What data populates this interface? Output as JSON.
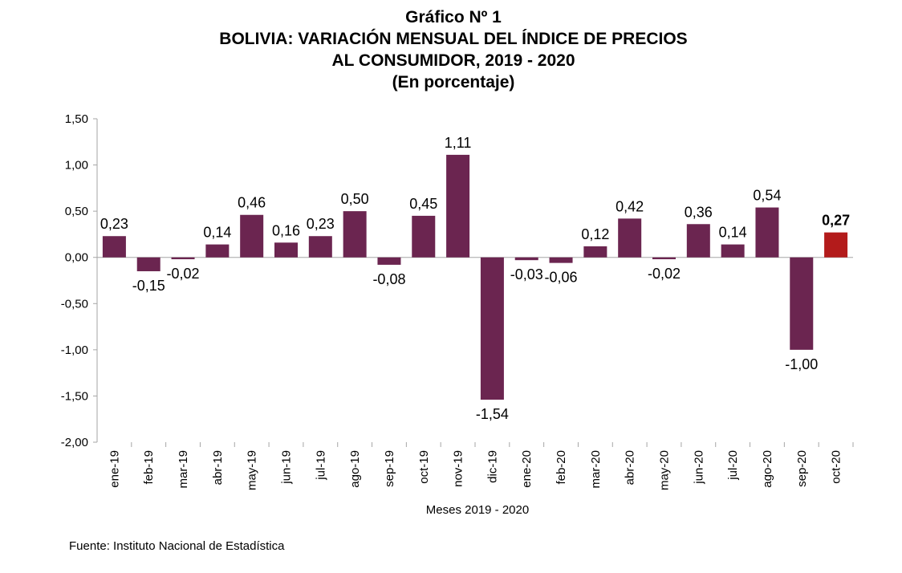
{
  "title_lines": [
    "Gráfico Nº 1",
    "BOLIVIA: VARIACIÓN MENSUAL DEL ÍNDICE DE PRECIOS",
    "AL CONSUMIDOR, 2019 - 2020",
    "(En porcentaje)"
  ],
  "source": "Fuente: Instituto Nacional de Estadística",
  "colors": {
    "bar": "#6b2550",
    "highlight": "#b31b1b",
    "axis": "#a6a6a6"
  },
  "chart_data": {
    "type": "bar",
    "categories": [
      "ene-19",
      "feb-19",
      "mar-19",
      "abr-19",
      "may-19",
      "jun-19",
      "jul-19",
      "ago-19",
      "sep-19",
      "oct-19",
      "nov-19",
      "dic-19",
      "ene-20",
      "feb-20",
      "mar-20",
      "abr-20",
      "may-20",
      "jun-20",
      "jul-20",
      "ago-20",
      "sep-20",
      "oct-20"
    ],
    "values": [
      0.23,
      -0.15,
      -0.02,
      0.14,
      0.46,
      0.16,
      0.23,
      0.5,
      -0.08,
      0.45,
      1.11,
      -1.54,
      -0.03,
      -0.06,
      0.12,
      0.42,
      -0.02,
      0.36,
      0.14,
      0.54,
      -1.0,
      0.27
    ],
    "value_labels": [
      "0,23",
      "-0,15",
      "-0,02",
      "0,14",
      "0,46",
      "0,16",
      "0,23",
      "0,50",
      "-0,08",
      "0,45",
      "1,11",
      "-1,54",
      "-0,03",
      "-0,06",
      "0,12",
      "0,42",
      "-0,02",
      "0,36",
      "0,14",
      "0,54",
      "-1,00",
      "0,27"
    ],
    "highlight_index": 21,
    "xlabel": "Meses 2019 - 2020",
    "ylabel": "",
    "ylim": [
      -2.0,
      1.5
    ],
    "yticks": [
      1.5,
      1.0,
      0.5,
      0.0,
      -0.5,
      -1.0,
      -1.5,
      -2.0
    ],
    "ytick_labels": [
      "1,50",
      "1,00",
      "0,50",
      "0,00",
      "-0,50",
      "-1,00",
      "-1,50",
      "-2,00"
    ],
    "grid": false,
    "legend": "none"
  }
}
